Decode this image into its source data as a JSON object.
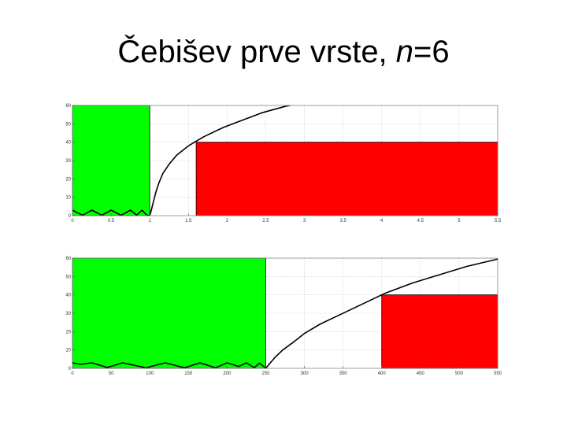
{
  "title": {
    "prefix": "Čebišev prve vrste, ",
    "var": "n",
    "suffix": "=6"
  },
  "colors": {
    "pass": "#00ff00",
    "stop": "#ff0000",
    "curve": "#000000",
    "grid": "#c8c8c8"
  },
  "chart_data": [
    {
      "type": "line",
      "title": "",
      "xlabel": "",
      "ylabel": "",
      "xlim": [
        0,
        5.5
      ],
      "ylim": [
        0,
        60
      ],
      "grid": true,
      "x_ticks": [
        0,
        0.5,
        1,
        1.5,
        2,
        2.5,
        3,
        3.5,
        4,
        4.5,
        5,
        5.5
      ],
      "x_tick_labels": [
        "0",
        "0.5",
        "1",
        "1.5",
        "2",
        "2.5",
        "3",
        "3.5",
        "4",
        "4.5",
        "5",
        "5.5"
      ],
      "y_ticks": [
        0,
        10,
        20,
        30,
        40,
        50,
        60
      ],
      "y_tick_labels": [
        "0",
        "10",
        "20",
        "30",
        "40",
        "50",
        "60"
      ],
      "regions": [
        {
          "kind": "passband",
          "color": "#00ff00",
          "x": [
            0,
            1
          ],
          "y": [
            0,
            60
          ],
          "top_edge": true
        },
        {
          "kind": "stopband",
          "color": "#ff0000",
          "x": [
            1.6,
            5.5
          ],
          "y": [
            0,
            40
          ],
          "top_edge": true
        }
      ],
      "series": [
        {
          "x": [
            0,
            0.13,
            0.25,
            0.38,
            0.5,
            0.63,
            0.75,
            0.83,
            0.9,
            0.96,
            1.0,
            1.02,
            1.05,
            1.08,
            1.12,
            1.17,
            1.25,
            1.35,
            1.5,
            1.7,
            1.95,
            2.2,
            2.45,
            2.75,
            2.92
          ],
          "y": [
            3,
            0.2,
            3,
            0.2,
            3,
            0.2,
            3,
            0.3,
            3,
            0.3,
            0,
            3,
            8,
            13,
            18,
            23,
            28,
            33,
            38,
            43,
            48,
            52,
            56,
            59.5,
            61
          ]
        }
      ]
    },
    {
      "type": "line",
      "title": "",
      "xlabel": "",
      "ylabel": "",
      "xlim": [
        0,
        550
      ],
      "ylim": [
        0,
        60
      ],
      "grid": true,
      "x_ticks": [
        0,
        50,
        100,
        150,
        200,
        250,
        300,
        350,
        400,
        450,
        500,
        550
      ],
      "x_tick_labels": [
        "0",
        "50",
        "100",
        "150",
        "200",
        "250",
        "300",
        "350",
        "400",
        "450",
        "500",
        "550"
      ],
      "y_ticks": [
        0,
        10,
        20,
        30,
        40,
        50,
        60
      ],
      "y_tick_labels": [
        "0",
        "10",
        "20",
        "30",
        "40",
        "50",
        "60"
      ],
      "regions": [
        {
          "kind": "passband",
          "color": "#00ff00",
          "x": [
            0,
            250
          ],
          "y": [
            0,
            60
          ],
          "top_edge": true
        },
        {
          "kind": "stopband",
          "color": "#ff0000",
          "x": [
            400,
            550
          ],
          "y": [
            0,
            40
          ],
          "top_edge": true
        }
      ],
      "series": [
        {
          "x": [
            0,
            10,
            25,
            45,
            65,
            95,
            120,
            145,
            165,
            185,
            200,
            215,
            225,
            235,
            242,
            246,
            250,
            255,
            262,
            272,
            285,
            300,
            320,
            345,
            375,
            405,
            440,
            475,
            510,
            540,
            560
          ],
          "y": [
            3,
            2.2,
            3,
            0.5,
            3,
            0.3,
            3,
            0.3,
            3,
            0.3,
            3,
            1,
            3,
            0.4,
            2.8,
            1.5,
            0,
            2.5,
            6,
            10,
            14,
            19,
            24,
            29,
            35,
            41,
            46.5,
            51,
            55.5,
            58.5,
            60.5
          ]
        }
      ]
    }
  ]
}
